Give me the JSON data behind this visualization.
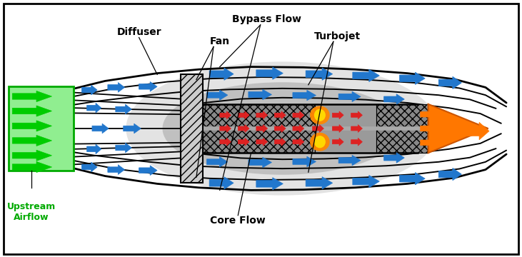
{
  "bg_color": "#ffffff",
  "border_color": "#000000",
  "labels": {
    "diffuser": "Diffuser",
    "fan": "Fan",
    "bypass_flow": "Bypass Flow",
    "turbojet": "Turbojet",
    "core_flow": "Core Flow",
    "upstream": "Upstream\nAirflow"
  },
  "colors": {
    "bg": "#ffffff",
    "green_fill": "#90EE90",
    "green_border": "#00aa00",
    "green_arrow": "#00cc00",
    "blue_arrow": "#2277cc",
    "red_arrow": "#dd2222",
    "orange_arrow": "#ff7700",
    "engine_body": "#999999",
    "engine_body_light": "#bbbbbb",
    "flame_orange": "#ff8800",
    "flame_yellow": "#ffdd00",
    "shadow1": "#dddddd",
    "shadow2": "#aaaaaa",
    "fan_fill": "#cccccc",
    "core_fill": "#b0b0b0",
    "comp_fill": "#888888",
    "shaft": "#aaaaaa"
  }
}
